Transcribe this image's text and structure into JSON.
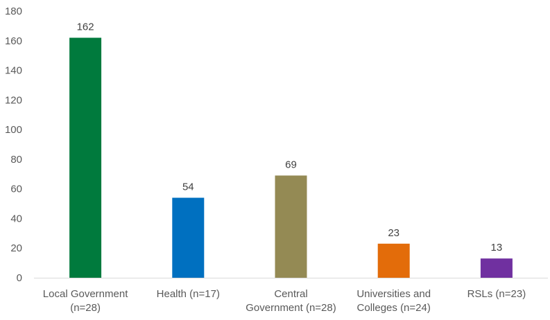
{
  "chart_data": {
    "type": "bar",
    "title": "",
    "xlabel": "",
    "ylabel": "",
    "ylim": [
      0,
      180
    ],
    "yticks": [
      0,
      20,
      40,
      60,
      80,
      100,
      120,
      140,
      160,
      180
    ],
    "grid": false,
    "legend": "none",
    "categories": [
      [
        "Local Government",
        "(n=28)"
      ],
      [
        "Health (n=17)"
      ],
      [
        "Central",
        "Government (n=28)"
      ],
      [
        "Universities and",
        "Colleges (n=24)"
      ],
      [
        "RSLs (n=23)"
      ]
    ],
    "values": [
      162,
      54,
      69,
      23,
      13
    ],
    "data_labels": [
      "162",
      "54",
      "69",
      "23",
      "13"
    ],
    "colors": [
      "#007a3d",
      "#0070c0",
      "#948a54",
      "#e36c0a",
      "#7030a0"
    ],
    "axis_color": "#d9d9d9"
  }
}
